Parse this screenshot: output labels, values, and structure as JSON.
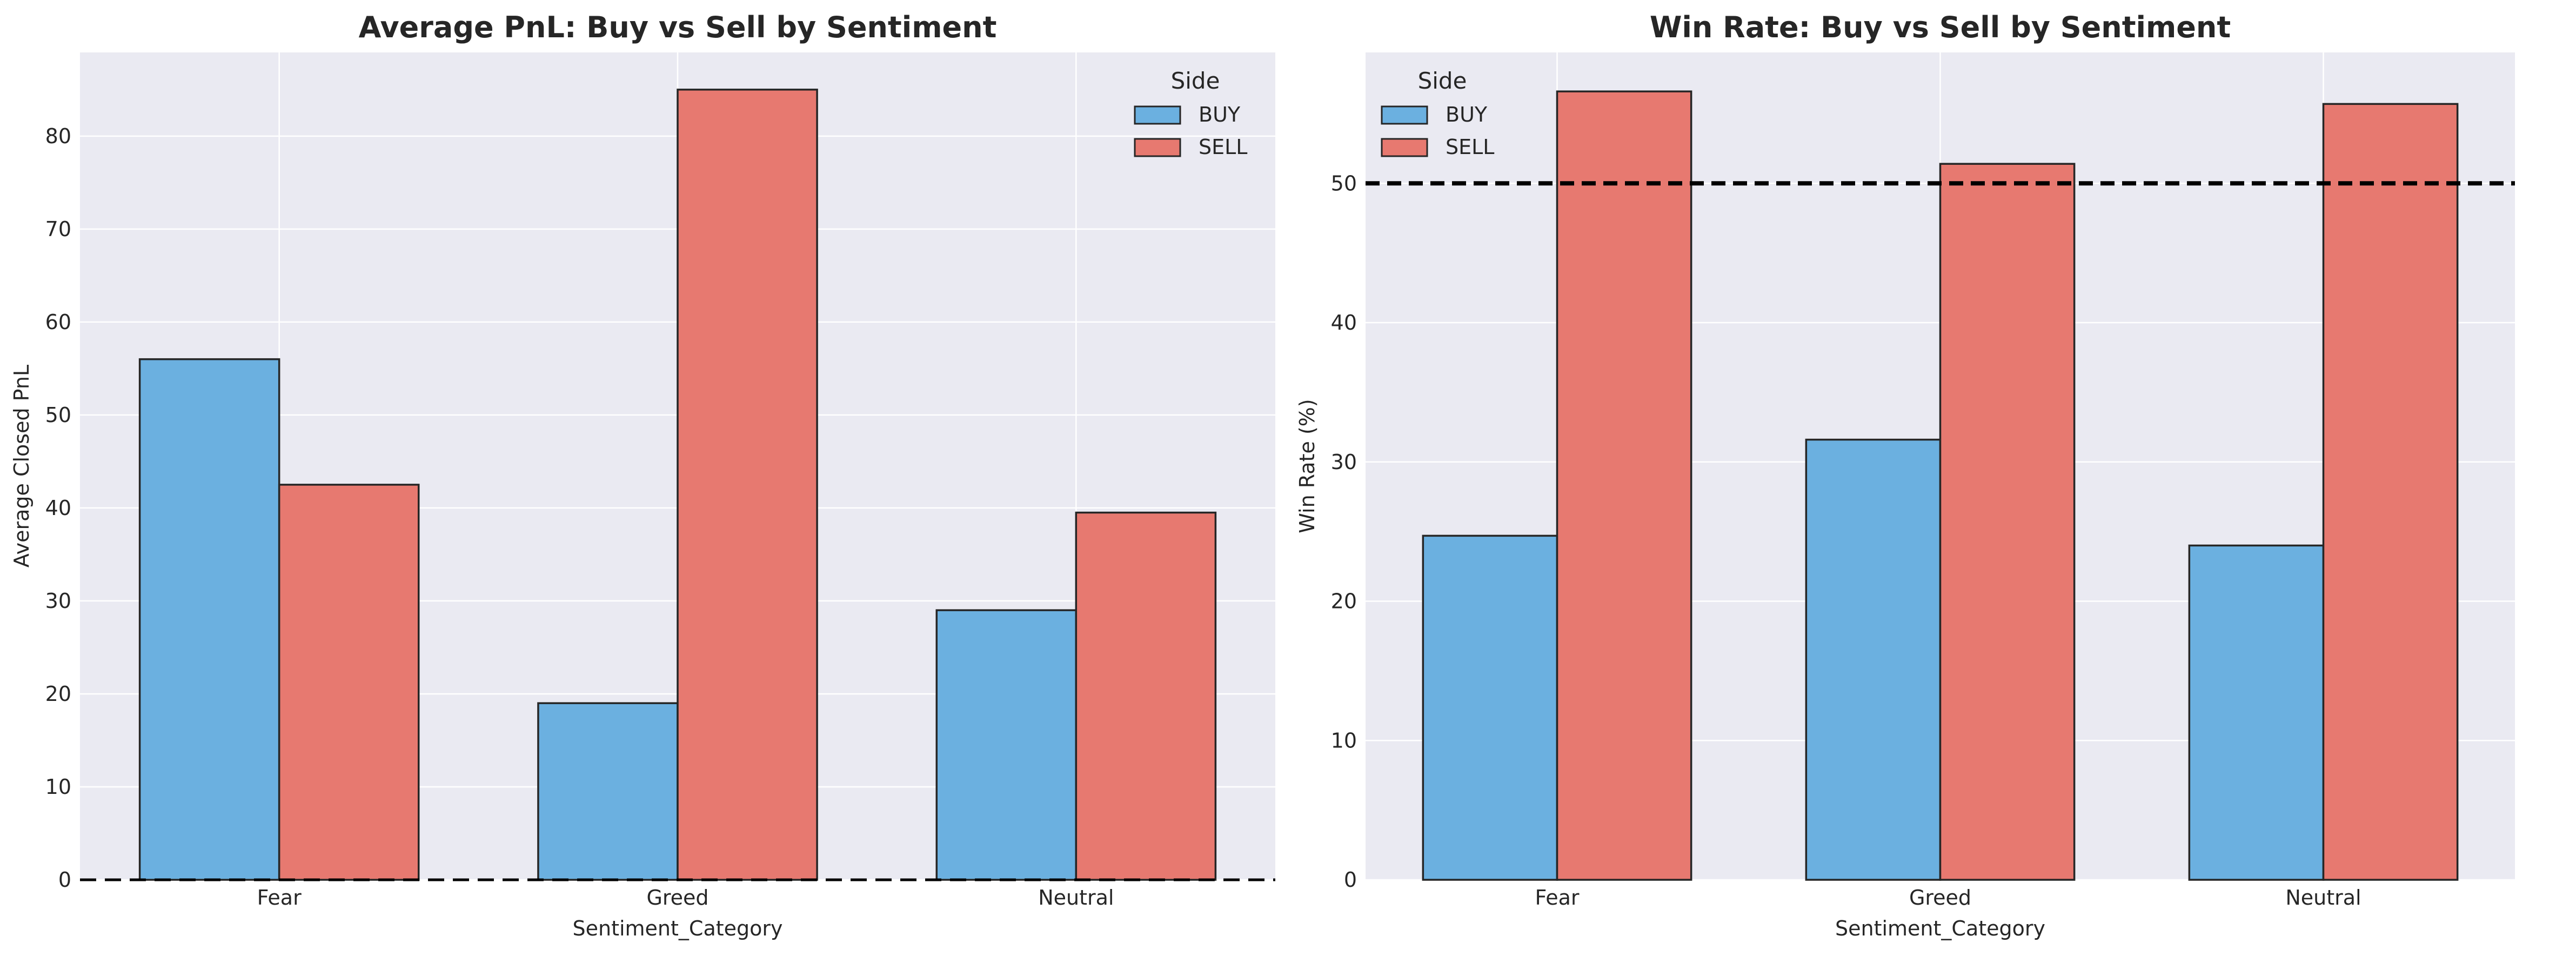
{
  "colors": {
    "background": "#eaeaf2",
    "grid": "#ffffff",
    "buy": "#6bb0e0",
    "sell": "#e77970",
    "edge": "#262626"
  },
  "chart_data": [
    {
      "type": "bar",
      "title": "Average PnL: Buy vs Sell by Sentiment",
      "xlabel": "Sentiment_Category",
      "ylabel": "Average Closed PnL",
      "categories": [
        "Fear",
        "Greed",
        "Neutral"
      ],
      "series": [
        {
          "name": "BUY",
          "values": [
            56,
            19,
            29
          ],
          "color": "#6bb0e0"
        },
        {
          "name": "SELL",
          "values": [
            42.5,
            85,
            39.5
          ],
          "color": "#e77970"
        }
      ],
      "ylim": [
        0,
        89
      ],
      "yticks": [
        0,
        10,
        20,
        30,
        40,
        50,
        60,
        70,
        80
      ],
      "reference_line": {
        "y": 0,
        "style": "dashed"
      },
      "legend": {
        "title": "Side",
        "placement": "top-right"
      },
      "grid": true
    },
    {
      "type": "bar",
      "title": "Win Rate: Buy vs Sell by Sentiment",
      "xlabel": "Sentiment_Category",
      "ylabel": "Win Rate (%)",
      "categories": [
        "Fear",
        "Greed",
        "Neutral"
      ],
      "series": [
        {
          "name": "BUY",
          "values": [
            24.7,
            31.6,
            24
          ],
          "color": "#6bb0e0"
        },
        {
          "name": "SELL",
          "values": [
            56.6,
            51.4,
            55.7
          ],
          "color": "#e77970"
        }
      ],
      "ylim": [
        0,
        59.4
      ],
      "yticks": [
        0,
        10,
        20,
        30,
        40,
        50
      ],
      "reference_line": {
        "y": 50,
        "style": "dashed"
      },
      "legend": {
        "title": "Side",
        "placement": "top-left"
      },
      "grid": true
    }
  ]
}
